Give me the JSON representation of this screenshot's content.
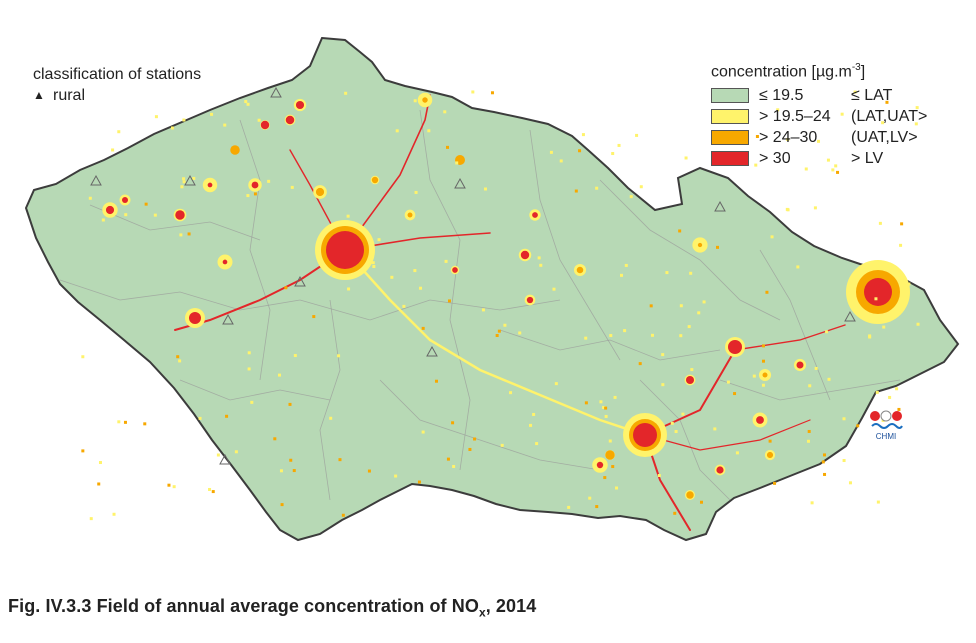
{
  "map": {
    "region": "Czech Republic",
    "colors": {
      "background": "#b7d9b5",
      "border": "#3c3c3c",
      "district_lines": "#9a9a9a",
      "low": "#b7d9b5",
      "mid": "#fff36b",
      "high": "#f7a800",
      "very_high": "#e3262a",
      "station": "#666666"
    },
    "stations_title": "classification of stations",
    "station_icon": "triangle-icon",
    "station_glyph": "▲",
    "station_type": "rural",
    "legend": {
      "title_prefix": "concentration [µg.m",
      "title_sup": "-3",
      "title_suffix": "]",
      "items": [
        {
          "range": "≤ 19.5",
          "class": "≤ LAT",
          "color": "#b7d9b5"
        },
        {
          "range": "> 19.5–24",
          "class": "(LAT,UAT>",
          "color": "#fff36b"
        },
        {
          "range": "> 24–30",
          "class": "(UAT,LV>",
          "color": "#f7a800"
        },
        {
          "range": "> 30",
          "class": "> LV",
          "color": "#e3262a"
        }
      ]
    },
    "logo_text": "CHMI"
  },
  "caption": {
    "prefix": "Fig. IV.3.3  Field of annual average concentration of NO",
    "sub": "x",
    "suffix": ", 2014"
  }
}
